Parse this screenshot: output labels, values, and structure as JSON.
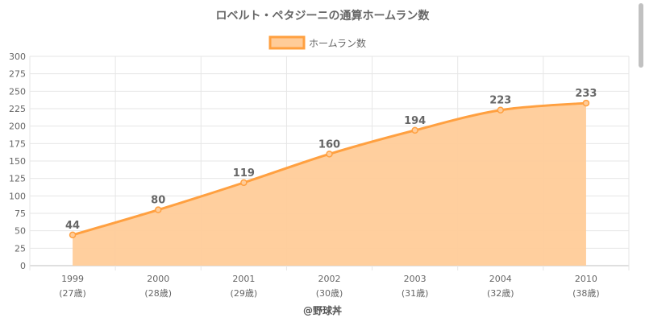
{
  "chart_data": {
    "type": "area",
    "title": "ロベルト・ペタジーニの通算ホームラン数",
    "categories": [
      "1999",
      "2000",
      "2001",
      "2002",
      "2003",
      "2004",
      "2010"
    ],
    "sub_labels": [
      "(27歳)",
      "(28歳)",
      "(29歳)",
      "(30歳)",
      "(31歳)",
      "(32歳)",
      "(38歳)"
    ],
    "series": [
      {
        "name": "ホームラン数",
        "values": [
          44,
          80,
          119,
          160,
          194,
          223,
          233
        ]
      }
    ],
    "ylim": [
      0,
      300
    ],
    "yticks": [
      0,
      25,
      50,
      75,
      100,
      125,
      150,
      175,
      200,
      225,
      250,
      275,
      300
    ],
    "grid": true,
    "legend_position": "top"
  },
  "credit": "@野球丼",
  "colors": {
    "line": "#FFA040",
    "fill": "#FFCC99",
    "text": "#666666"
  }
}
